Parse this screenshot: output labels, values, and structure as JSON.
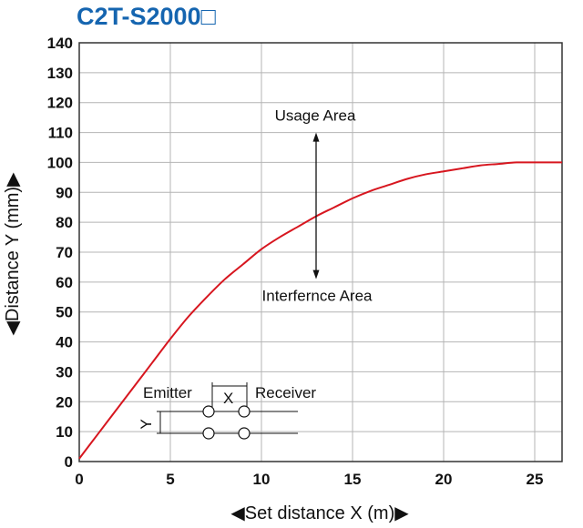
{
  "chart_data": {
    "type": "line",
    "title": "C2T-S2000□",
    "xlabel": "◀Set distance X (m)▶",
    "ylabel": "◀Distance Y (mm)▶",
    "xlim": [
      0,
      26.5
    ],
    "ylim": [
      0,
      140
    ],
    "xticks": [
      "0",
      "5",
      "10",
      "15",
      "20",
      "25"
    ],
    "yticks": [
      "0",
      "10",
      "20",
      "30",
      "40",
      "50",
      "60",
      "70",
      "80",
      "90",
      "100",
      "110",
      "120",
      "130",
      "140"
    ],
    "grid": true,
    "series": [
      {
        "color": "#d7161f",
        "x": [
          0,
          1,
          2,
          3,
          4,
          5,
          6,
          7,
          8,
          9,
          10,
          11,
          12,
          13,
          14,
          15,
          16,
          17,
          18,
          19,
          20,
          21,
          22,
          23,
          24,
          25,
          26,
          26.5
        ],
        "y": [
          1,
          9,
          17,
          25,
          33,
          41,
          48.5,
          55,
          61,
          66,
          71,
          75,
          78.5,
          82,
          85,
          88,
          90.5,
          92.5,
          94.5,
          96,
          97,
          98,
          99,
          99.5,
          100,
          100,
          100,
          100
        ]
      }
    ],
    "annotations": {
      "usage": "Usage Area",
      "interference": "Interfernce Area",
      "arrow_x": 13,
      "arrow_y_top": 110,
      "arrow_y_bottom": 61
    },
    "inset": {
      "emitter": "Emitter",
      "receiver": "Receiver",
      "x_label": "X",
      "y_label": "Y"
    }
  }
}
